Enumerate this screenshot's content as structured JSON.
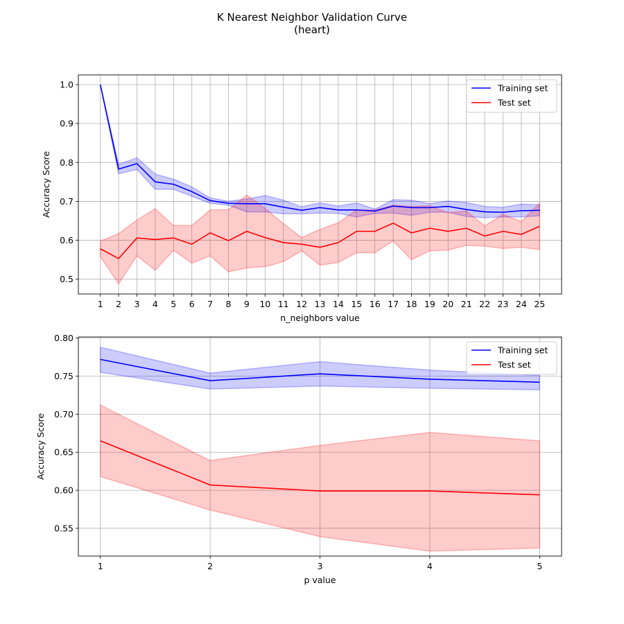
{
  "figure": {
    "title_line1": "K Nearest Neighbor Validation Curve",
    "title_line2": "(heart)"
  },
  "chart_data": [
    {
      "type": "line",
      "xlabel": "n_neighbors value",
      "ylabel": "Accuracy Score",
      "x": [
        1,
        2,
        3,
        4,
        5,
        6,
        7,
        8,
        9,
        10,
        11,
        12,
        13,
        14,
        15,
        16,
        17,
        18,
        19,
        20,
        21,
        22,
        23,
        24,
        25
      ],
      "xlim": [
        -0.2,
        26.2
      ],
      "ylim": [
        0.462,
        1.025
      ],
      "yticks": [
        0.5,
        0.6,
        0.7,
        0.8,
        0.9,
        1.0
      ],
      "ytick_format": 1,
      "grid": true,
      "legend": "top-right",
      "series": [
        {
          "name": "Training set",
          "color": "#0000ff",
          "values": [
            1.0,
            0.783,
            0.797,
            0.75,
            0.744,
            0.725,
            0.702,
            0.695,
            0.694,
            0.694,
            0.685,
            0.677,
            0.684,
            0.678,
            0.678,
            0.675,
            0.688,
            0.684,
            0.684,
            0.687,
            0.679,
            0.673,
            0.672,
            0.676,
            0.677
          ],
          "lower": [
            1.0,
            0.771,
            0.782,
            0.731,
            0.731,
            0.713,
            0.695,
            0.69,
            0.673,
            0.673,
            0.668,
            0.668,
            0.67,
            0.669,
            0.66,
            0.669,
            0.67,
            0.664,
            0.672,
            0.672,
            0.661,
            0.658,
            0.66,
            0.66,
            0.663
          ],
          "upper": [
            1.0,
            0.795,
            0.812,
            0.77,
            0.757,
            0.737,
            0.709,
            0.7,
            0.706,
            0.715,
            0.703,
            0.686,
            0.696,
            0.688,
            0.696,
            0.68,
            0.704,
            0.703,
            0.694,
            0.701,
            0.697,
            0.687,
            0.685,
            0.693,
            0.691
          ]
        },
        {
          "name": "Test set",
          "color": "#ff0000",
          "values": [
            0.578,
            0.553,
            0.606,
            0.602,
            0.606,
            0.59,
            0.619,
            0.599,
            0.623,
            0.607,
            0.594,
            0.59,
            0.582,
            0.594,
            0.623,
            0.623,
            0.644,
            0.619,
            0.631,
            0.623,
            0.631,
            0.611,
            0.623,
            0.615,
            0.636
          ],
          "lower": [
            0.558,
            0.488,
            0.56,
            0.523,
            0.574,
            0.541,
            0.56,
            0.519,
            0.529,
            0.532,
            0.545,
            0.573,
            0.536,
            0.543,
            0.568,
            0.568,
            0.598,
            0.55,
            0.573,
            0.575,
            0.587,
            0.585,
            0.579,
            0.582,
            0.576
          ],
          "upper": [
            0.598,
            0.617,
            0.652,
            0.681,
            0.638,
            0.638,
            0.678,
            0.679,
            0.716,
            0.682,
            0.643,
            0.607,
            0.628,
            0.645,
            0.678,
            0.678,
            0.69,
            0.687,
            0.689,
            0.671,
            0.675,
            0.637,
            0.667,
            0.648,
            0.696
          ]
        }
      ]
    },
    {
      "type": "line",
      "xlabel": "p value",
      "ylabel": "Accuracy Score",
      "x": [
        1,
        2,
        3,
        4,
        5
      ],
      "xlim": [
        0.8,
        5.2
      ],
      "ylim": [
        0.5135,
        0.8015
      ],
      "yticks": [
        0.55,
        0.6,
        0.65,
        0.7,
        0.75,
        0.8
      ],
      "ytick_format": 2,
      "grid": true,
      "legend": "top-right",
      "series": [
        {
          "name": "Training set",
          "color": "#0000ff",
          "values": [
            0.772,
            0.744,
            0.753,
            0.746,
            0.742
          ],
          "lower": [
            0.755,
            0.733,
            0.737,
            0.734,
            0.732
          ],
          "upper": [
            0.788,
            0.754,
            0.769,
            0.758,
            0.751
          ]
        },
        {
          "name": "Test set",
          "color": "#ff0000",
          "values": [
            0.665,
            0.607,
            0.599,
            0.599,
            0.594
          ],
          "lower": [
            0.618,
            0.574,
            0.539,
            0.52,
            0.524
          ],
          "upper": [
            0.712,
            0.639,
            0.659,
            0.676,
            0.665
          ]
        }
      ]
    }
  ]
}
